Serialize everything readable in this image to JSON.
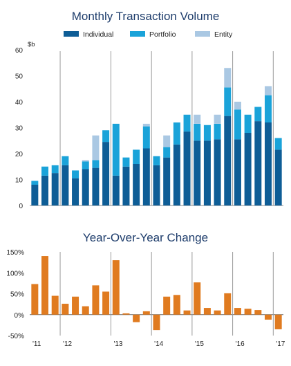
{
  "chart_data": [
    {
      "type": "bar",
      "stacked": true,
      "title": "Monthly Transaction Volume",
      "ylabel": "$b",
      "ylim": [
        0,
        60
      ],
      "yticks": [
        0,
        10,
        20,
        30,
        40,
        50,
        60
      ],
      "legend_position": "top",
      "x_period_labels": [
        "'11",
        "'12",
        "'13",
        "'14",
        "'15",
        "'16",
        "'17"
      ],
      "series": [
        {
          "name": "Individual",
          "color": "#0e5d96",
          "values": [
            8,
            11.5,
            12.5,
            15.5,
            10.5,
            14,
            14.5,
            24.5,
            11.5,
            15,
            16,
            22,
            15.5,
            18.5,
            23.5,
            28.5,
            25,
            25,
            25.5,
            34.5,
            25.5,
            28,
            32.5,
            32,
            21.5
          ]
        },
        {
          "name": "Portfolio",
          "color": "#1aa3d9",
          "values": [
            1.5,
            3.5,
            3,
            3.5,
            3,
            3,
            3,
            4.5,
            20,
            3.5,
            5.5,
            8.5,
            3.5,
            4,
            8.5,
            6.5,
            6.5,
            6,
            6,
            11,
            11.5,
            7,
            5.5,
            10.5,
            4.5
          ]
        },
        {
          "name": "Entity",
          "color": "#aac8e3",
          "values": [
            0,
            0,
            0,
            0,
            0,
            0.5,
            9.5,
            0,
            0,
            0,
            0,
            1,
            0,
            4.5,
            0,
            0,
            3.5,
            0,
            3.5,
            7.5,
            3,
            0,
            0,
            3.5,
            0
          ]
        }
      ]
    },
    {
      "type": "bar",
      "title": "Year-Over-Year Change",
      "ylim": [
        -50,
        150
      ],
      "ytick_labels": [
        "150%",
        "100%",
        "50%",
        "0%",
        "-50%"
      ],
      "x_period_labels": [
        "'11",
        "'12",
        "'13",
        "'14",
        "'15",
        "'16",
        "'17"
      ],
      "color": "#e07b20",
      "values": [
        73,
        140,
        45,
        26,
        43,
        20,
        70,
        55,
        130,
        3,
        -18,
        8,
        -37,
        43,
        47,
        10,
        77,
        16,
        10,
        51,
        16,
        14,
        11,
        -12,
        -35
      ]
    }
  ]
}
